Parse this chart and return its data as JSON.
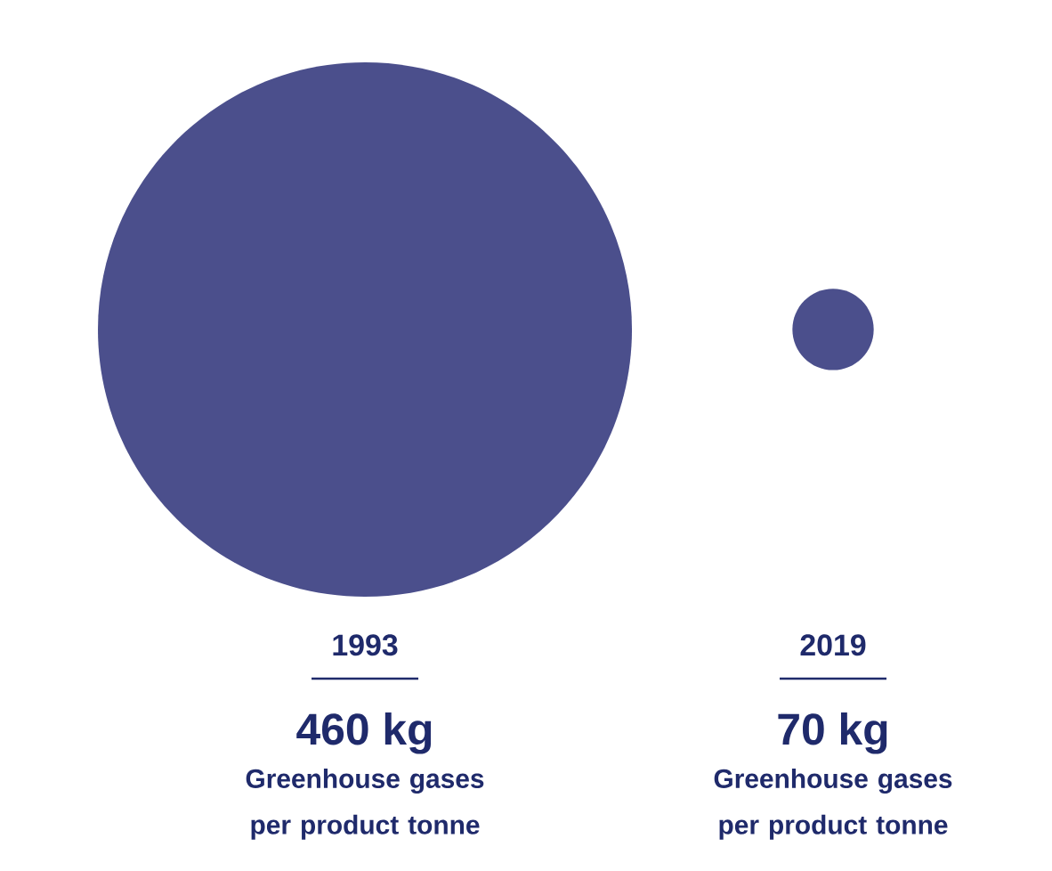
{
  "chart_data": {
    "type": "other",
    "categories": [
      "1993",
      "2019"
    ],
    "values": [
      460,
      70
    ],
    "value_labels": [
      "460 kg",
      "70 kg"
    ],
    "colors": [
      "#4b4f8c",
      "#4b4f8c"
    ],
    "annotations": [
      "Greenhouse gases per product tonne",
      "Greenhouse gases per product tonne"
    ]
  }
}
